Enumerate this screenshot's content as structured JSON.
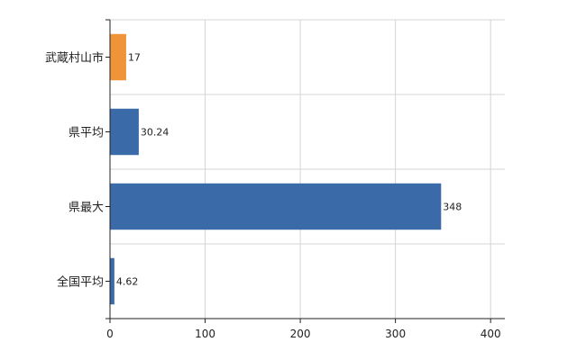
{
  "chart_data": {
    "type": "bar",
    "orientation": "horizontal",
    "title": "",
    "xlabel": "",
    "ylabel": "",
    "categories": [
      "武蔵村山市",
      "県平均",
      "県最大",
      "全国平均"
    ],
    "values": [
      17,
      30.24,
      348,
      4.62
    ],
    "value_labels": [
      "17",
      "30.24",
      "348",
      "4.62"
    ],
    "bar_colors": [
      "#f0943a",
      "#3a6aa8",
      "#3a6aa8",
      "#3a6aa8"
    ],
    "xlim": [
      0,
      415
    ],
    "xticks": [
      0,
      100,
      200,
      300,
      400
    ],
    "xtick_labels": [
      "0",
      "100",
      "200",
      "300",
      "400"
    ],
    "grid": true,
    "legend": "none"
  }
}
